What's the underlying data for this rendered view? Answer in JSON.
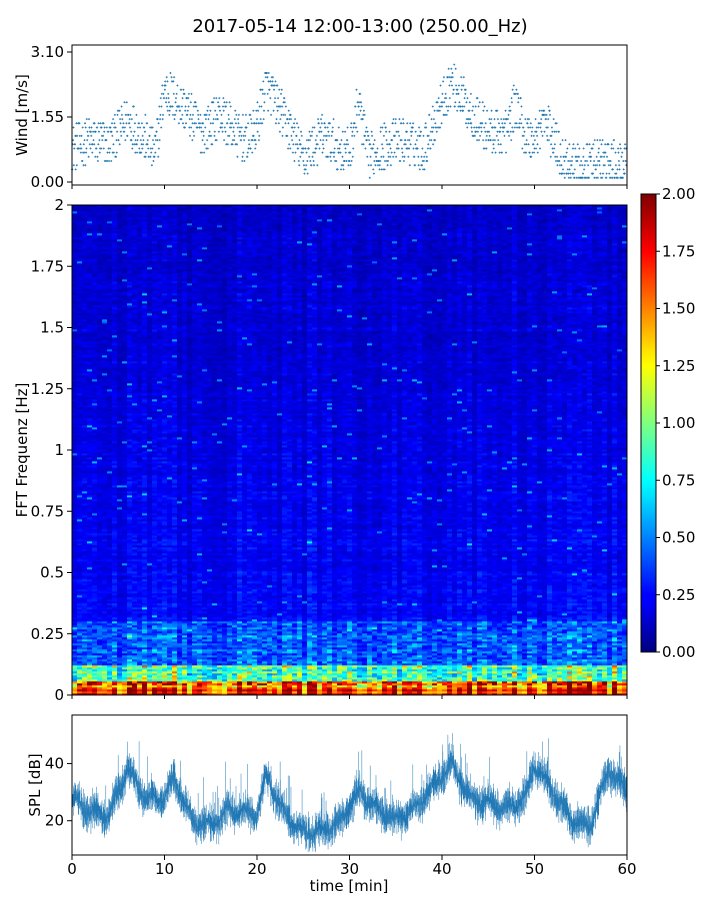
{
  "title": "2017-05-14 12:00-13:00 (250.00_Hz)",
  "chart_data": [
    {
      "panel": "wind",
      "type": "scatter",
      "ylabel": "Wind [m/s]",
      "xlim": [
        0,
        60
      ],
      "ylim": [
        0,
        3.1
      ],
      "yticks": [
        "0.00",
        "1.55",
        "3.10"
      ],
      "color": "#1f77b4",
      "profile_x": [
        0,
        2,
        4,
        6,
        8,
        9,
        10,
        12,
        14,
        16,
        18,
        19,
        20,
        21,
        23,
        25,
        27,
        29,
        30,
        31,
        32,
        34,
        36,
        38,
        39,
        41,
        43,
        45,
        47,
        48,
        49,
        50,
        51,
        53,
        55,
        57,
        59,
        60
      ],
      "profile_y": [
        0.8,
        1.0,
        0.9,
        1.5,
        1.0,
        0.7,
        2.2,
        1.8,
        1.2,
        1.6,
        1.1,
        1.0,
        1.3,
        2.3,
        1.5,
        0.6,
        1.1,
        0.8,
        0.7,
        1.9,
        0.6,
        0.9,
        1.0,
        0.8,
        1.4,
        2.4,
        1.7,
        1.2,
        1.2,
        1.9,
        1.1,
        1.0,
        1.5,
        0.6,
        0.3,
        0.5,
        0.4,
        0.3
      ]
    },
    {
      "panel": "spectrogram",
      "type": "heatmap",
      "ylabel": "FFT Frequenz [Hz]",
      "xlim": [
        0,
        60
      ],
      "ylim": [
        0,
        2
      ],
      "yticks": [
        "0",
        "0.25",
        "0.5",
        "0.75",
        "1",
        "1.25",
        "1.5",
        "1.75",
        "2"
      ],
      "colormap": "jet",
      "colorbar": {
        "range": [
          0,
          2
        ],
        "ticks": [
          "0.00",
          "0.25",
          "0.50",
          "0.75",
          "1.00",
          "1.25",
          "1.50",
          "1.75",
          "2.00"
        ]
      }
    },
    {
      "panel": "spl",
      "type": "line",
      "ylabel": "SPL [dB]",
      "xlabel": "time [min]",
      "xlim": [
        0,
        60
      ],
      "ylim": [
        8,
        57
      ],
      "yticks": [
        "20",
        "40"
      ],
      "xticks": [
        "0",
        "10",
        "20",
        "30",
        "40",
        "50",
        "60"
      ],
      "color": "#1f77b4",
      "profile_x": [
        0,
        2,
        4,
        6,
        8,
        10,
        11,
        13,
        15,
        17,
        20,
        21,
        23,
        25,
        27,
        29,
        31,
        33,
        35,
        37,
        39,
        41,
        43,
        45,
        47,
        49,
        50,
        52,
        54,
        56,
        58,
        60
      ],
      "profile_y": [
        28,
        23,
        22,
        38,
        28,
        28,
        35,
        20,
        18,
        24,
        22,
        36,
        22,
        16,
        16,
        20,
        30,
        24,
        20,
        24,
        32,
        40,
        28,
        26,
        24,
        28,
        40,
        30,
        20,
        18,
        38,
        30
      ]
    }
  ]
}
